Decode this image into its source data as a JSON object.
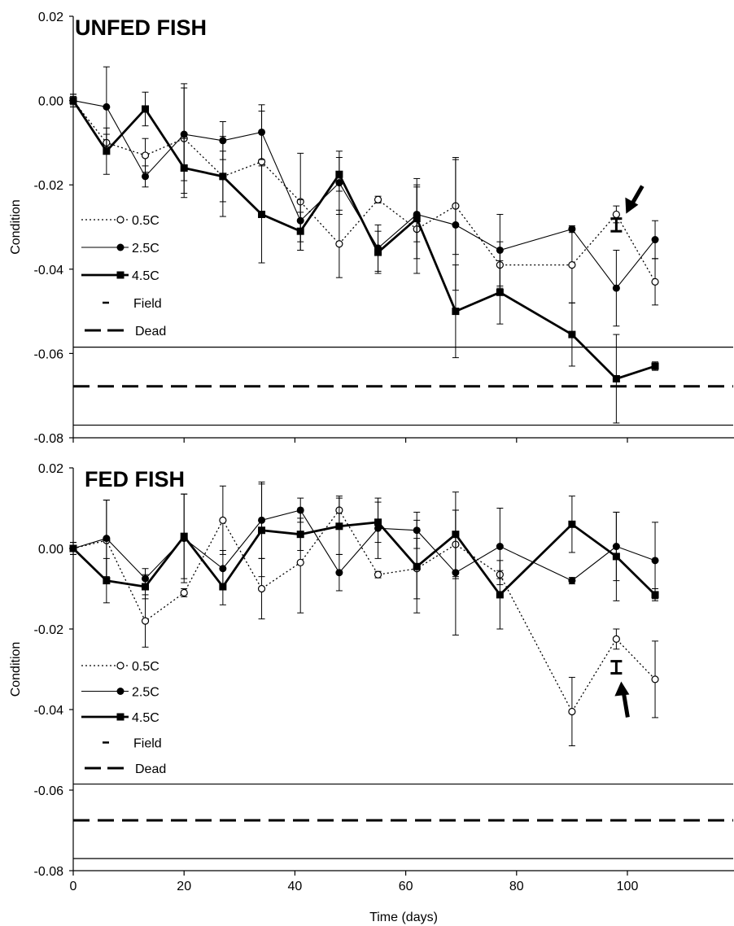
{
  "chart_data": [
    {
      "type": "line",
      "title": "UNFED FISH",
      "xlabel": "",
      "ylabel": "Condition",
      "xlim": [
        0,
        105
      ],
      "ylim": [
        -0.08,
        0.02
      ],
      "x_ticks": [
        0,
        20,
        40,
        60,
        80,
        100
      ],
      "x_tick_labels": [],
      "y_ticks": [
        0.02,
        0.0,
        -0.02,
        -0.04,
        -0.06,
        -0.08
      ],
      "y_tick_labels": [
        "0.02",
        "0.00",
        "-0.02",
        "-0.04",
        "-0.06",
        "-0.08"
      ],
      "grid": false,
      "legend_position": "left",
      "series": [
        {
          "name": "0.5C",
          "style": "dotted-open-circle",
          "x": [
            0,
            6,
            13,
            20,
            27,
            34,
            41,
            48,
            55,
            62,
            69,
            77,
            90,
            98,
            105
          ],
          "y": [
            0.0,
            -0.01,
            -0.013,
            -0.009,
            -0.018,
            -0.0145,
            -0.024,
            -0.034,
            -0.0235,
            -0.0305,
            -0.025,
            -0.039,
            -0.039,
            -0.027,
            -0.043
          ],
          "error": [
            0.001,
            0.002,
            0.004,
            0.013,
            0.006,
            0.012,
            0.0115,
            0.008,
            0.0008,
            0.0105,
            0.0115,
            0.0055,
            0.009,
            0.002,
            0.0055
          ]
        },
        {
          "name": "2.5C",
          "style": "thin-filled-circle",
          "x": [
            0,
            6,
            13,
            20,
            27,
            34,
            41,
            48,
            55,
            62,
            69,
            77,
            90,
            98,
            105
          ],
          "y": [
            0.0,
            -0.0015,
            -0.018,
            -0.008,
            -0.0095,
            -0.0075,
            -0.0285,
            -0.0195,
            -0.035,
            -0.027,
            -0.0295,
            -0.0355,
            -0.0305,
            -0.0445,
            -0.033
          ],
          "error": [
            0.0015,
            0.0095,
            0.0025,
            0.011,
            0.0045,
            0.0065,
            0.005,
            0.0075,
            0.0055,
            0.0065,
            0.0155,
            0.0085,
            0.0008,
            0.009,
            0.0045
          ]
        },
        {
          "name": "4.5C",
          "style": "thick-filled-square",
          "x": [
            0,
            6,
            13,
            20,
            27,
            34,
            41,
            48,
            55,
            62,
            69,
            77,
            90,
            98,
            105
          ],
          "y": [
            0.0,
            -0.012,
            -0.002,
            -0.016,
            -0.018,
            -0.027,
            -0.031,
            -0.0175,
            -0.036,
            -0.028,
            -0.05,
            -0.0455,
            -0.0555,
            -0.066,
            -0.063
          ],
          "error": [
            0.0015,
            0.0055,
            0.004,
            0.007,
            0.0095,
            0.0115,
            0.0045,
            0.004,
            0.005,
            0.0095,
            0.011,
            0.0075,
            0.0075,
            0.0105,
            0.001
          ]
        }
      ],
      "field": {
        "name": "Field",
        "x": 98,
        "y": -0.0295,
        "error": 0.0015,
        "arrow": "down-left"
      },
      "dead": {
        "name": "Dead",
        "y": -0.0678,
        "band": [
          -0.0585,
          -0.077
        ]
      }
    },
    {
      "type": "line",
      "title": "FED FISH",
      "xlabel": "Time (days)",
      "ylabel": "Condition",
      "xlim": [
        0,
        105
      ],
      "ylim": [
        -0.08,
        0.02
      ],
      "x_ticks": [
        0,
        20,
        40,
        60,
        80,
        100
      ],
      "x_tick_labels": [
        "0",
        "20",
        "40",
        "60",
        "80",
        "100"
      ],
      "y_ticks": [
        0.02,
        0.0,
        -0.02,
        -0.04,
        -0.06,
        -0.08
      ],
      "y_tick_labels": [
        "0.02",
        "0.00",
        "-0.02",
        "-0.04",
        "-0.06",
        "-0.08"
      ],
      "grid": false,
      "legend_position": "left",
      "series": [
        {
          "name": "0.5C",
          "style": "dotted-open-circle",
          "x": [
            0,
            6,
            13,
            20,
            27,
            34,
            41,
            48,
            55,
            62,
            69,
            77,
            90,
            98,
            105
          ],
          "y": [
            0.0,
            0.002,
            -0.018,
            -0.011,
            0.007,
            -0.01,
            -0.0035,
            0.0095,
            -0.0065,
            -0.005,
            0.001,
            -0.0065,
            -0.0405,
            -0.0225,
            -0.0325
          ],
          "error": [
            0.0015,
            0.01,
            0.0065,
            0.001,
            0.0085,
            0.0075,
            0.0125,
            0.0035,
            0.0008,
            0.0075,
            0.0085,
            0.001,
            0.0085,
            0.0025,
            0.0095
          ]
        },
        {
          "name": "2.5C",
          "style": "thin-filled-circle",
          "x": [
            0,
            6,
            13,
            20,
            27,
            34,
            41,
            48,
            55,
            62,
            69,
            77,
            90,
            98,
            105
          ],
          "y": [
            0.0,
            0.0025,
            -0.0075,
            0.0025,
            -0.005,
            0.007,
            0.0095,
            -0.006,
            0.005,
            0.0045,
            -0.006,
            0.0005,
            -0.008,
            0.0005,
            -0.003
          ],
          "error": [
            0.0015,
            0.0095,
            0.0025,
            0.011,
            0.0045,
            0.0095,
            0.003,
            0.0045,
            0.0075,
            0.0045,
            0.0155,
            0.0095,
            0.0008,
            0.0085,
            0.0095
          ]
        },
        {
          "name": "4.5C",
          "style": "thick-filled-square",
          "x": [
            0,
            6,
            13,
            20,
            27,
            34,
            41,
            48,
            55,
            62,
            69,
            77,
            90,
            98,
            105
          ],
          "y": [
            0.0,
            -0.008,
            -0.0095,
            0.003,
            -0.0095,
            0.0045,
            0.0035,
            0.0055,
            0.0065,
            -0.0045,
            0.0035,
            -0.0115,
            0.006,
            -0.002,
            -0.0115
          ],
          "error": [
            0.0015,
            0.0055,
            0.003,
            0.0105,
            0.0045,
            0.0115,
            0.004,
            0.007,
            0.005,
            0.0115,
            0.0105,
            0.0085,
            0.007,
            0.011,
            0.0015
          ]
        }
      ],
      "field": {
        "name": "Field",
        "x": 98,
        "y": -0.0295,
        "error": 0.0015,
        "arrow": "up"
      },
      "dead": {
        "name": "Dead",
        "y": -0.0675,
        "band": [
          -0.0585,
          -0.077
        ]
      }
    }
  ]
}
